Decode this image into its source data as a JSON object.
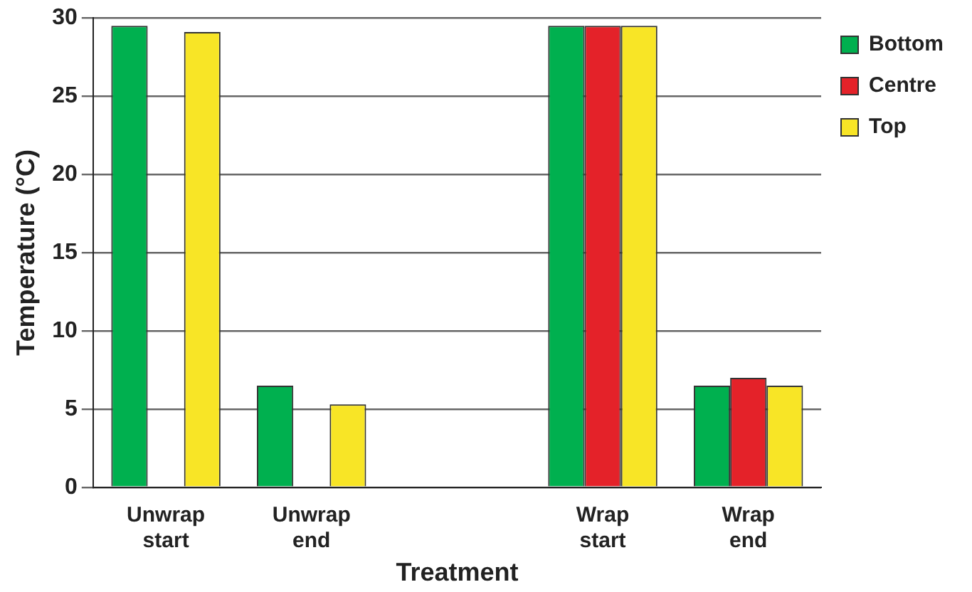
{
  "chart_data": {
    "type": "bar",
    "xlabel": "Treatment",
    "ylabel": "Temperature (°C)",
    "categories": [
      "Unwrap start",
      "Unwrap end",
      null,
      "Wrap start",
      "Wrap end"
    ],
    "series": [
      {
        "name": "Bottom",
        "color": "#00b04f",
        "values": [
          29.5,
          6.5,
          null,
          29.5,
          6.5
        ]
      },
      {
        "name": "Centre",
        "color": "#e42229",
        "values": [
          0,
          0,
          null,
          29.5,
          7.0
        ]
      },
      {
        "name": "Top",
        "color": "#f8e526",
        "values": [
          29.1,
          5.3,
          null,
          29.5,
          6.5
        ]
      }
    ],
    "ylim": [
      0,
      30
    ],
    "yticks": [
      0,
      5,
      10,
      15,
      20,
      25,
      30
    ],
    "grid": "y",
    "legend": "top right"
  }
}
